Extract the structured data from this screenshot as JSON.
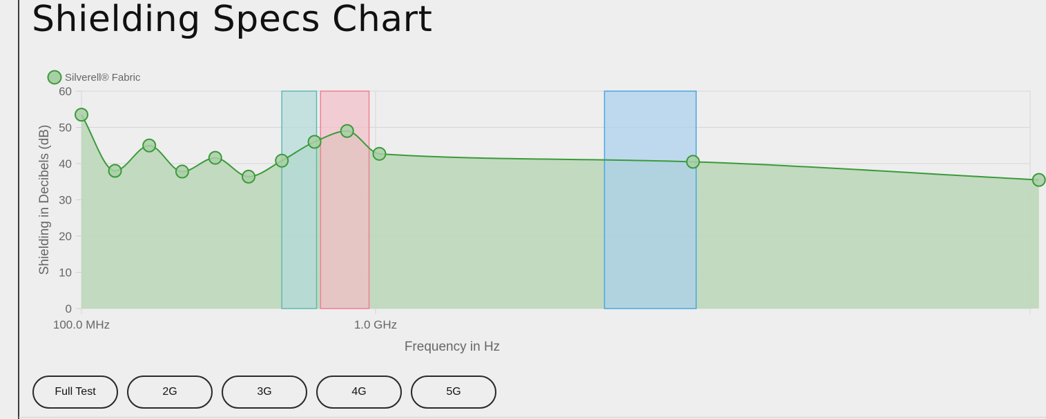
{
  "page": {
    "title": "Shielding Specs Chart"
  },
  "buttons": [
    "Full Test",
    "2G",
    "3G",
    "4G",
    "5G"
  ],
  "chart_data": {
    "type": "area",
    "x_scale": "log",
    "xlabel": "Frequency in Hz",
    "ylabel": "Shielding in Decibels (dB)",
    "ylim": [
      0,
      60
    ],
    "y_ticks": [
      0,
      10,
      20,
      30,
      40,
      50,
      60
    ],
    "x_ticks": [
      {
        "value": 100000000,
        "label": "100.0 MHz"
      },
      {
        "value": 1000000000,
        "label": "1.0 GHz"
      }
    ],
    "grid": true,
    "legend_position": "top-left",
    "series": [
      {
        "name": "Silverell® Fabric",
        "color": "#3a9a3a",
        "fill": "#bfd8bc",
        "x": [
          100000000,
          130000000,
          170000000,
          220000000,
          285000000,
          370000000,
          480000000,
          620000000,
          800000000,
          1030000000,
          12000000000,
          180000000000
        ],
        "y": [
          53.5,
          38,
          45,
          37.8,
          41.6,
          36.4,
          40.8,
          46,
          49,
          42.7,
          40.5,
          35.5
        ]
      }
    ],
    "bands": [
      {
        "x_start": 480000000,
        "x_end": 630000000,
        "color": "#b2dcda",
        "stroke": "#5fb8b2"
      },
      {
        "x_start": 650000000,
        "x_end": 950000000,
        "color": "#f3bec8",
        "stroke": "#ee7f92"
      },
      {
        "x_start": 6000000000,
        "x_end": 12300000000,
        "color": "#a9d0ee",
        "stroke": "#4aa5df"
      }
    ]
  }
}
